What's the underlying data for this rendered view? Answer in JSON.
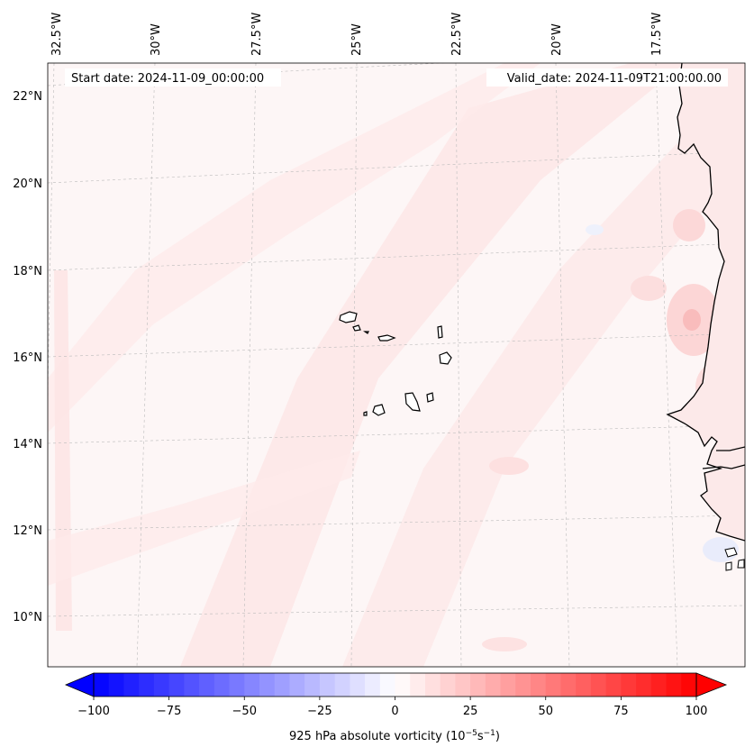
{
  "header": {
    "start_date": "Start date: 2024-11-09_00:00:00",
    "valid_date": "Valid_date: 2024-11-09T21:00:00.00"
  },
  "map": {
    "lon_labels": [
      "32.5°W",
      "30°W",
      "27.5°W",
      "25°W",
      "22.5°W",
      "20°W",
      "17.5°W"
    ],
    "lat_labels": [
      "22°N",
      "20°N",
      "18°N",
      "16°N",
      "14°N",
      "12°N",
      "10°N"
    ]
  },
  "colorbar": {
    "label": "925 hPa absolute vorticity (10",
    "label_exp1": "−5",
    "label_mid": "s",
    "label_exp2": "−1",
    "label_end": ")",
    "ticks": [
      "−100",
      "−75",
      "−50",
      "−25",
      "0",
      "25",
      "50",
      "75",
      "100"
    ],
    "min_color": "#0000ff",
    "mid_color": "#ffffff",
    "max_color": "#ff0000"
  }
}
